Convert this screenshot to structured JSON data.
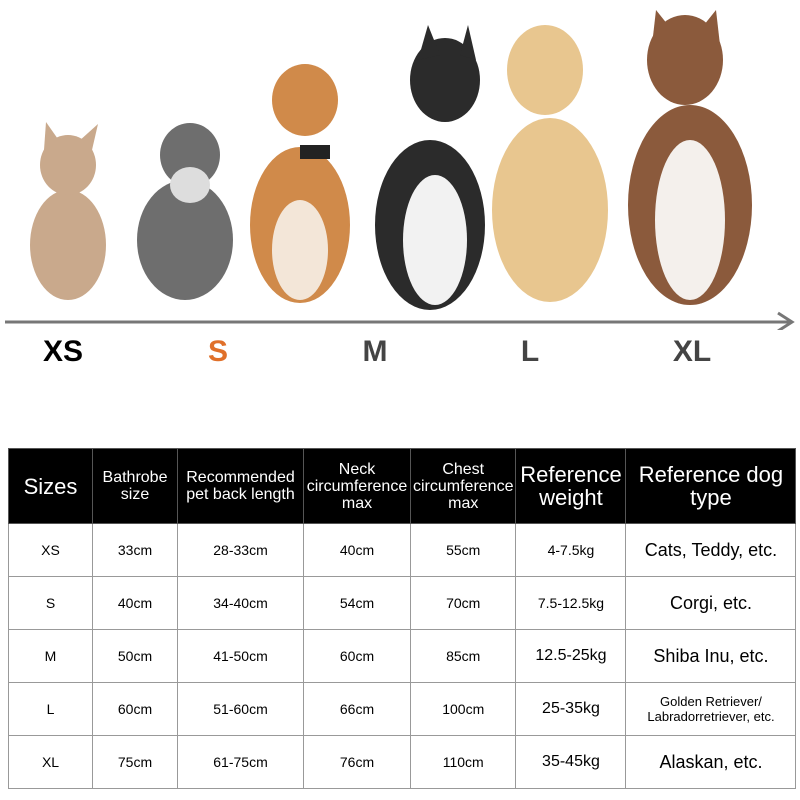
{
  "size_labels": [
    "XS",
    "S",
    "M",
    "L",
    "XL"
  ],
  "table": {
    "header": [
      "Sizes",
      "Bathrobe size",
      "Recommended pet back length",
      "Neck circumference max",
      "Chest circumference max",
      "Reference weight",
      "Reference dog type"
    ],
    "rows": [
      [
        "XS",
        "33cm",
        "28-33cm",
        "40cm",
        "55cm",
        "4-7.5kg",
        "Cats, Teddy, etc."
      ],
      [
        "S",
        "40cm",
        "34-40cm",
        "54cm",
        "70cm",
        "7.5-12.5kg",
        "Corgi, etc."
      ],
      [
        "M",
        "50cm",
        "41-50cm",
        "60cm",
        "85cm",
        "12.5-25kg",
        "Shiba Inu, etc."
      ],
      [
        "L",
        "60cm",
        "51-60cm",
        "66cm",
        "100cm",
        "25-35kg",
        "Golden Retriever/ Labradorretriever, etc."
      ],
      [
        "XL",
        "75cm",
        "61-75cm",
        "76cm",
        "110cm",
        "35-45kg",
        "Alaskan, etc."
      ]
    ]
  }
}
